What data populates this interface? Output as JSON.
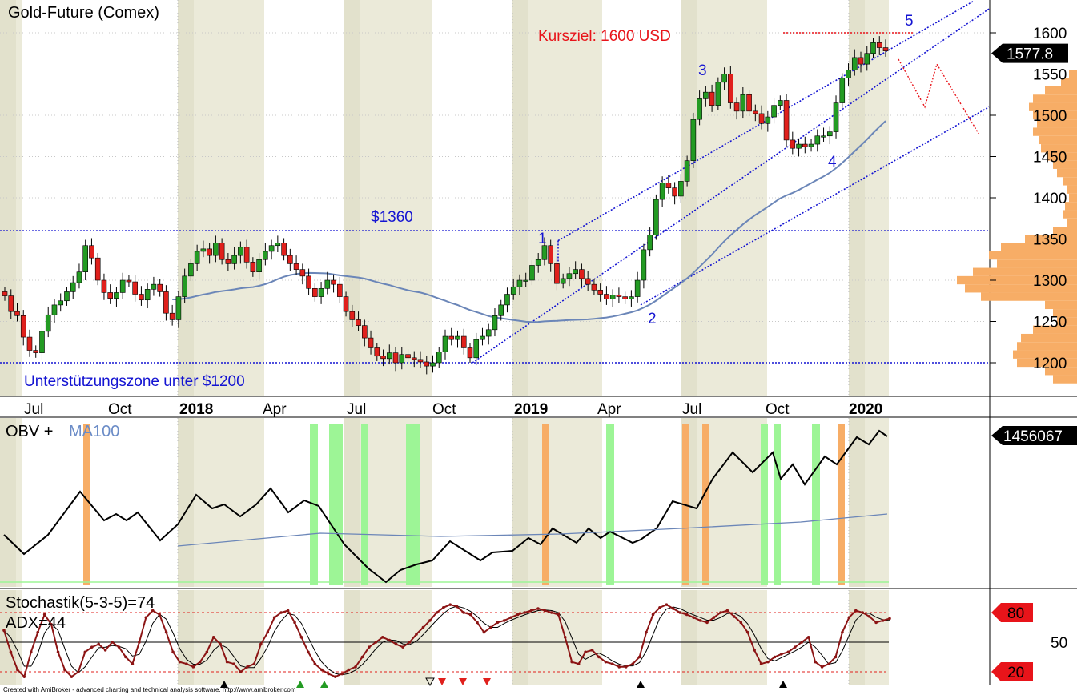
{
  "chart_data": [
    {
      "type": "candlestick",
      "title": "Gold-Future (Comex)",
      "y_axis_ticks": [
        1200,
        1250,
        1300,
        1350,
        1400,
        1450,
        1500,
        1550,
        1600
      ],
      "ylim": [
        1165,
        1630
      ],
      "last_value_label": "1577.8",
      "x_tick_labels": [
        "Jul",
        "Oct",
        "2018",
        "Apr",
        "Jul",
        "Oct",
        "2019",
        "Apr",
        "Jul",
        "Oct",
        "2020"
      ],
      "grid": true,
      "annotations": {
        "target_label": "Kursziel: 1600 USD",
        "resistance_label": "$1360",
        "resistance_value": 1360,
        "support_label": "Unterstützungszone unter $1200",
        "support_value": 1200,
        "wave_labels": [
          "1",
          "2",
          "3",
          "4",
          "5"
        ]
      },
      "closes": [
        1281,
        1262,
        1257,
        1231,
        1215,
        1212,
        1238,
        1258,
        1270,
        1275,
        1286,
        1297,
        1310,
        1342,
        1327,
        1300,
        1285,
        1278,
        1285,
        1300,
        1298,
        1283,
        1276,
        1289,
        1295,
        1286,
        1260,
        1252,
        1280,
        1305,
        1320,
        1335,
        1338,
        1330,
        1345,
        1325,
        1320,
        1330,
        1340,
        1322,
        1310,
        1325,
        1335,
        1342,
        1345,
        1330,
        1320,
        1313,
        1305,
        1290,
        1280,
        1290,
        1300,
        1295,
        1280,
        1262,
        1252,
        1245,
        1230,
        1218,
        1208,
        1205,
        1212,
        1200,
        1210,
        1206,
        1204,
        1201,
        1196,
        1200,
        1213,
        1232,
        1228,
        1232,
        1218,
        1206,
        1228,
        1232,
        1240,
        1257,
        1270,
        1283,
        1292,
        1300,
        1300,
        1318,
        1325,
        1342,
        1320,
        1296,
        1302,
        1308,
        1313,
        1302,
        1295,
        1288,
        1283,
        1277,
        1282,
        1280,
        1277,
        1280,
        1300,
        1337,
        1355,
        1398,
        1418,
        1412,
        1402,
        1420,
        1445,
        1495,
        1520,
        1528,
        1512,
        1540,
        1550,
        1515,
        1505,
        1525,
        1505,
        1502,
        1490,
        1498,
        1512,
        1518,
        1470,
        1460,
        1465,
        1462,
        1465,
        1475,
        1475,
        1480,
        1515,
        1545,
        1555,
        1570,
        1562,
        1575,
        1588,
        1582,
        1578
      ]
    },
    {
      "type": "line",
      "title": "OBV +",
      "ma_label": "MA100",
      "last_value_label": "1456067"
    },
    {
      "type": "line",
      "title": "Stochastik(5-3-5)=74",
      "subtitle": "ADX=44",
      "y_axis_ticks": [
        50
      ],
      "level_labels": [
        "80",
        "20"
      ],
      "ylim": [
        0,
        100
      ]
    }
  ],
  "footer": "Created with AmiBroker - advanced charting and technical analysis software. http://www.amibroker.com"
}
